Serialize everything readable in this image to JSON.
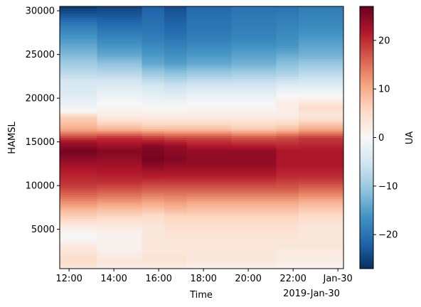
{
  "chart_data": {
    "type": "heatmap",
    "title": "",
    "xlabel": "Time",
    "ylabel": "HAMSL",
    "x_offset_label": "2019-Jan-30",
    "x_ticks": [
      {
        "time": "12:00",
        "label": "12:00"
      },
      {
        "time": "14:00",
        "label": "14:00"
      },
      {
        "time": "16:00",
        "label": "16:00"
      },
      {
        "time": "18:00",
        "label": "18:00"
      },
      {
        "time": "20:00",
        "label": "20:00"
      },
      {
        "time": "22:00",
        "label": "22:00"
      },
      {
        "time": "24:00",
        "label": "Jan-30"
      }
    ],
    "xlim": [
      "11:35",
      "24:15"
    ],
    "ylim": [
      500,
      30500
    ],
    "y_ticks": [
      5000,
      10000,
      15000,
      20000,
      25000,
      30000
    ],
    "colorbar": {
      "label": "UA",
      "colormap": "RdBu_r",
      "vmin": -27,
      "vmax": 27,
      "ticks": [
        -20,
        -10,
        0,
        10,
        20
      ]
    },
    "time_columns": [
      {
        "start": "11:35",
        "end": "13:15"
      },
      {
        "start": "13:15",
        "end": "15:15"
      },
      {
        "start": "15:15",
        "end": "16:15"
      },
      {
        "start": "16:15",
        "end": "17:15"
      },
      {
        "start": "17:15",
        "end": "19:15"
      },
      {
        "start": "19:15",
        "end": "21:15"
      },
      {
        "start": "21:15",
        "end": "22:15"
      },
      {
        "start": "22:15",
        "end": "24:15"
      }
    ],
    "profiles": [
      {
        "column": 0,
        "points": [
          [
            500,
            3
          ],
          [
            1500,
            5
          ],
          [
            3000,
            3
          ],
          [
            4000,
            0
          ],
          [
            5000,
            1
          ],
          [
            6000,
            5
          ],
          [
            7000,
            8
          ],
          [
            8500,
            14
          ],
          [
            10000,
            19
          ],
          [
            12000,
            22
          ],
          [
            14000,
            26
          ],
          [
            15000,
            23
          ],
          [
            16500,
            10
          ],
          [
            18000,
            6
          ],
          [
            18500,
            0
          ],
          [
            20000,
            -3
          ],
          [
            22000,
            -5
          ],
          [
            25000,
            -12
          ],
          [
            28000,
            -18
          ],
          [
            30500,
            -26
          ]
        ]
      },
      {
        "column": 1,
        "points": [
          [
            500,
            2
          ],
          [
            1500,
            3
          ],
          [
            3000,
            1
          ],
          [
            4500,
            1
          ],
          [
            6000,
            4
          ],
          [
            7500,
            9
          ],
          [
            9000,
            15
          ],
          [
            10500,
            20
          ],
          [
            12500,
            23
          ],
          [
            14000,
            25
          ],
          [
            15500,
            20
          ],
          [
            16500,
            9
          ],
          [
            18000,
            2
          ],
          [
            20000,
            -1
          ],
          [
            22000,
            -5
          ],
          [
            25000,
            -14
          ],
          [
            28000,
            -20
          ],
          [
            30500,
            -25
          ]
        ]
      },
      {
        "column": 2,
        "points": [
          [
            500,
            2
          ],
          [
            1500,
            4
          ],
          [
            3000,
            3
          ],
          [
            5000,
            3
          ],
          [
            6500,
            5
          ],
          [
            8000,
            10
          ],
          [
            9500,
            16
          ],
          [
            11000,
            21
          ],
          [
            13000,
            26
          ],
          [
            14500,
            25
          ],
          [
            15500,
            19
          ],
          [
            16500,
            8
          ],
          [
            18000,
            2
          ],
          [
            19500,
            -1
          ],
          [
            21500,
            -5
          ],
          [
            24000,
            -14
          ],
          [
            27000,
            -19
          ],
          [
            30500,
            -22
          ]
        ]
      },
      {
        "column": 3,
        "points": [
          [
            500,
            2
          ],
          [
            1500,
            4
          ],
          [
            3000,
            3
          ],
          [
            5000,
            4
          ],
          [
            6500,
            6
          ],
          [
            8000,
            11
          ],
          [
            9500,
            16
          ],
          [
            11000,
            21
          ],
          [
            13000,
            25
          ],
          [
            14500,
            24
          ],
          [
            15500,
            18
          ],
          [
            16500,
            8
          ],
          [
            18000,
            2
          ],
          [
            19500,
            -1
          ],
          [
            21500,
            -6
          ],
          [
            24000,
            -15
          ],
          [
            27000,
            -20
          ],
          [
            30500,
            -24
          ]
        ]
      },
      {
        "column": 4,
        "points": [
          [
            500,
            1
          ],
          [
            1500,
            3
          ],
          [
            3000,
            3
          ],
          [
            5000,
            4
          ],
          [
            6500,
            6
          ],
          [
            8000,
            10
          ],
          [
            9500,
            16
          ],
          [
            11000,
            21
          ],
          [
            12500,
            24
          ],
          [
            14000,
            24
          ],
          [
            15500,
            18
          ],
          [
            16500,
            8
          ],
          [
            18000,
            2
          ],
          [
            19500,
            0
          ],
          [
            21500,
            -5
          ],
          [
            24000,
            -14
          ],
          [
            27000,
            -19
          ],
          [
            30500,
            -21
          ]
        ]
      },
      {
        "column": 5,
        "points": [
          [
            500,
            1
          ],
          [
            1500,
            3
          ],
          [
            3000,
            3
          ],
          [
            5000,
            4
          ],
          [
            6500,
            6
          ],
          [
            8000,
            10
          ],
          [
            9500,
            16
          ],
          [
            11000,
            21
          ],
          [
            12500,
            24
          ],
          [
            14000,
            24
          ],
          [
            15500,
            17
          ],
          [
            16500,
            7
          ],
          [
            18000,
            2
          ],
          [
            19500,
            0
          ],
          [
            21500,
            -5
          ],
          [
            24000,
            -13
          ],
          [
            27000,
            -18
          ],
          [
            30500,
            -20
          ]
        ]
      },
      {
        "column": 6,
        "points": [
          [
            500,
            1
          ],
          [
            1500,
            2
          ],
          [
            3000,
            3
          ],
          [
            5000,
            4
          ],
          [
            6500,
            6
          ],
          [
            8000,
            10
          ],
          [
            9500,
            16
          ],
          [
            11000,
            20
          ],
          [
            12500,
            22
          ],
          [
            14000,
            22
          ],
          [
            15500,
            18
          ],
          [
            16500,
            8
          ],
          [
            18000,
            2
          ],
          [
            19500,
            2
          ],
          [
            21000,
            -2
          ],
          [
            23000,
            -9
          ],
          [
            26000,
            -16
          ],
          [
            30500,
            -20
          ]
        ]
      },
      {
        "column": 7,
        "points": [
          [
            500,
            1
          ],
          [
            1500,
            2
          ],
          [
            3000,
            3
          ],
          [
            5000,
            3
          ],
          [
            6500,
            5
          ],
          [
            8000,
            9
          ],
          [
            9500,
            15
          ],
          [
            11000,
            20
          ],
          [
            12500,
            22
          ],
          [
            14000,
            22
          ],
          [
            15500,
            19
          ],
          [
            16500,
            10
          ],
          [
            18000,
            3
          ],
          [
            19000,
            5
          ],
          [
            20000,
            1
          ],
          [
            22000,
            -5
          ],
          [
            25000,
            -13
          ],
          [
            28000,
            -17
          ],
          [
            30500,
            -19
          ]
        ]
      }
    ]
  }
}
